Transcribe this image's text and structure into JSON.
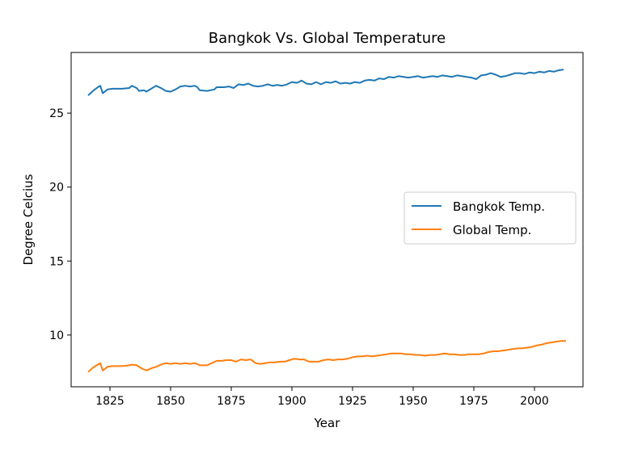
{
  "chart_data": {
    "type": "line",
    "title": "Bangkok Vs. Global Temperature",
    "xlabel": "Year",
    "ylabel": "Degree Celcius",
    "xlim": [
      1809,
      2020
    ],
    "ylim": [
      6.5,
      29.1
    ],
    "xticks": [
      1825,
      1850,
      1875,
      1900,
      1925,
      1950,
      1975,
      2000
    ],
    "yticks": [
      10,
      15,
      20,
      25
    ],
    "grid": false,
    "legend_position": "center-right",
    "series": [
      {
        "name": "Bangkok Temp.",
        "color": "#1f77b4",
        "points": [
          [
            1816,
            26.2
          ],
          [
            1818,
            26.5
          ],
          [
            1820,
            26.75
          ],
          [
            1821,
            26.85
          ],
          [
            1822,
            26.35
          ],
          [
            1824,
            26.6
          ],
          [
            1826,
            26.65
          ],
          [
            1830,
            26.65
          ],
          [
            1833,
            26.7
          ],
          [
            1834,
            26.85
          ],
          [
            1836,
            26.7
          ],
          [
            1837,
            26.5
          ],
          [
            1839,
            26.55
          ],
          [
            1840,
            26.45
          ],
          [
            1842,
            26.65
          ],
          [
            1844,
            26.85
          ],
          [
            1846,
            26.7
          ],
          [
            1848,
            26.5
          ],
          [
            1850,
            26.45
          ],
          [
            1852,
            26.6
          ],
          [
            1854,
            26.8
          ],
          [
            1856,
            26.85
          ],
          [
            1858,
            26.8
          ],
          [
            1860,
            26.85
          ],
          [
            1861,
            26.75
          ],
          [
            1862,
            26.55
          ],
          [
            1865,
            26.5
          ],
          [
            1868,
            26.6
          ],
          [
            1869,
            26.75
          ],
          [
            1872,
            26.75
          ],
          [
            1874,
            26.8
          ],
          [
            1876,
            26.7
          ],
          [
            1878,
            26.95
          ],
          [
            1880,
            26.9
          ],
          [
            1882,
            27.0
          ],
          [
            1884,
            26.85
          ],
          [
            1886,
            26.8
          ],
          [
            1888,
            26.85
          ],
          [
            1890,
            26.95
          ],
          [
            1892,
            26.85
          ],
          [
            1894,
            26.9
          ],
          [
            1896,
            26.85
          ],
          [
            1898,
            26.95
          ],
          [
            1900,
            27.1
          ],
          [
            1902,
            27.05
          ],
          [
            1904,
            27.2
          ],
          [
            1906,
            27.0
          ],
          [
            1908,
            26.95
          ],
          [
            1910,
            27.1
          ],
          [
            1912,
            26.95
          ],
          [
            1914,
            27.1
          ],
          [
            1916,
            27.05
          ],
          [
            1918,
            27.15
          ],
          [
            1920,
            27.0
          ],
          [
            1922,
            27.05
          ],
          [
            1924,
            27.0
          ],
          [
            1926,
            27.1
          ],
          [
            1928,
            27.05
          ],
          [
            1930,
            27.2
          ],
          [
            1932,
            27.25
          ],
          [
            1934,
            27.2
          ],
          [
            1936,
            27.35
          ],
          [
            1938,
            27.3
          ],
          [
            1940,
            27.45
          ],
          [
            1942,
            27.4
          ],
          [
            1944,
            27.5
          ],
          [
            1946,
            27.45
          ],
          [
            1948,
            27.4
          ],
          [
            1950,
            27.45
          ],
          [
            1952,
            27.5
          ],
          [
            1954,
            27.4
          ],
          [
            1956,
            27.45
          ],
          [
            1958,
            27.5
          ],
          [
            1960,
            27.45
          ],
          [
            1962,
            27.55
          ],
          [
            1964,
            27.5
          ],
          [
            1966,
            27.45
          ],
          [
            1968,
            27.55
          ],
          [
            1970,
            27.5
          ],
          [
            1972,
            27.45
          ],
          [
            1974,
            27.4
          ],
          [
            1976,
            27.3
          ],
          [
            1978,
            27.55
          ],
          [
            1980,
            27.6
          ],
          [
            1982,
            27.7
          ],
          [
            1984,
            27.6
          ],
          [
            1986,
            27.45
          ],
          [
            1988,
            27.5
          ],
          [
            1990,
            27.6
          ],
          [
            1992,
            27.7
          ],
          [
            1994,
            27.7
          ],
          [
            1996,
            27.65
          ],
          [
            1998,
            27.75
          ],
          [
            2000,
            27.7
          ],
          [
            2002,
            27.8
          ],
          [
            2004,
            27.75
          ],
          [
            2006,
            27.85
          ],
          [
            2008,
            27.8
          ],
          [
            2010,
            27.9
          ],
          [
            2012,
            27.95
          ]
        ]
      },
      {
        "name": "Global Temp.",
        "color": "#ff7f0e",
        "points": [
          [
            1816,
            7.5
          ],
          [
            1818,
            7.8
          ],
          [
            1820,
            8.0
          ],
          [
            1821,
            8.1
          ],
          [
            1822,
            7.6
          ],
          [
            1824,
            7.85
          ],
          [
            1826,
            7.9
          ],
          [
            1830,
            7.9
          ],
          [
            1833,
            7.95
          ],
          [
            1834,
            8.0
          ],
          [
            1836,
            7.95
          ],
          [
            1838,
            7.75
          ],
          [
            1840,
            7.6
          ],
          [
            1842,
            7.75
          ],
          [
            1844,
            7.85
          ],
          [
            1846,
            8.0
          ],
          [
            1848,
            8.1
          ],
          [
            1850,
            8.05
          ],
          [
            1852,
            8.1
          ],
          [
            1854,
            8.05
          ],
          [
            1856,
            8.1
          ],
          [
            1858,
            8.05
          ],
          [
            1860,
            8.1
          ],
          [
            1862,
            7.95
          ],
          [
            1865,
            7.95
          ],
          [
            1867,
            8.1
          ],
          [
            1869,
            8.25
          ],
          [
            1871,
            8.25
          ],
          [
            1873,
            8.3
          ],
          [
            1875,
            8.3
          ],
          [
            1877,
            8.2
          ],
          [
            1879,
            8.35
          ],
          [
            1881,
            8.3
          ],
          [
            1883,
            8.35
          ],
          [
            1885,
            8.1
          ],
          [
            1887,
            8.05
          ],
          [
            1889,
            8.1
          ],
          [
            1891,
            8.15
          ],
          [
            1893,
            8.15
          ],
          [
            1895,
            8.2
          ],
          [
            1897,
            8.2
          ],
          [
            1899,
            8.3
          ],
          [
            1901,
            8.4
          ],
          [
            1903,
            8.35
          ],
          [
            1905,
            8.35
          ],
          [
            1907,
            8.2
          ],
          [
            1909,
            8.2
          ],
          [
            1911,
            8.2
          ],
          [
            1913,
            8.3
          ],
          [
            1915,
            8.35
          ],
          [
            1917,
            8.3
          ],
          [
            1919,
            8.35
          ],
          [
            1921,
            8.35
          ],
          [
            1923,
            8.4
          ],
          [
            1925,
            8.5
          ],
          [
            1927,
            8.55
          ],
          [
            1929,
            8.55
          ],
          [
            1931,
            8.6
          ],
          [
            1933,
            8.55
          ],
          [
            1935,
            8.6
          ],
          [
            1937,
            8.65
          ],
          [
            1939,
            8.7
          ],
          [
            1941,
            8.75
          ],
          [
            1943,
            8.75
          ],
          [
            1945,
            8.75
          ],
          [
            1947,
            8.7
          ],
          [
            1949,
            8.7
          ],
          [
            1951,
            8.65
          ],
          [
            1953,
            8.65
          ],
          [
            1955,
            8.6
          ],
          [
            1957,
            8.65
          ],
          [
            1959,
            8.65
          ],
          [
            1961,
            8.7
          ],
          [
            1963,
            8.75
          ],
          [
            1965,
            8.7
          ],
          [
            1967,
            8.7
          ],
          [
            1969,
            8.65
          ],
          [
            1971,
            8.65
          ],
          [
            1973,
            8.7
          ],
          [
            1975,
            8.7
          ],
          [
            1977,
            8.7
          ],
          [
            1979,
            8.75
          ],
          [
            1981,
            8.85
          ],
          [
            1983,
            8.9
          ],
          [
            1985,
            8.9
          ],
          [
            1987,
            8.95
          ],
          [
            1989,
            9.0
          ],
          [
            1991,
            9.05
          ],
          [
            1993,
            9.1
          ],
          [
            1995,
            9.1
          ],
          [
            1997,
            9.15
          ],
          [
            1999,
            9.2
          ],
          [
            2001,
            9.3
          ],
          [
            2003,
            9.35
          ],
          [
            2005,
            9.45
          ],
          [
            2007,
            9.5
          ],
          [
            2009,
            9.55
          ],
          [
            2011,
            9.6
          ],
          [
            2013,
            9.6
          ]
        ]
      }
    ]
  }
}
